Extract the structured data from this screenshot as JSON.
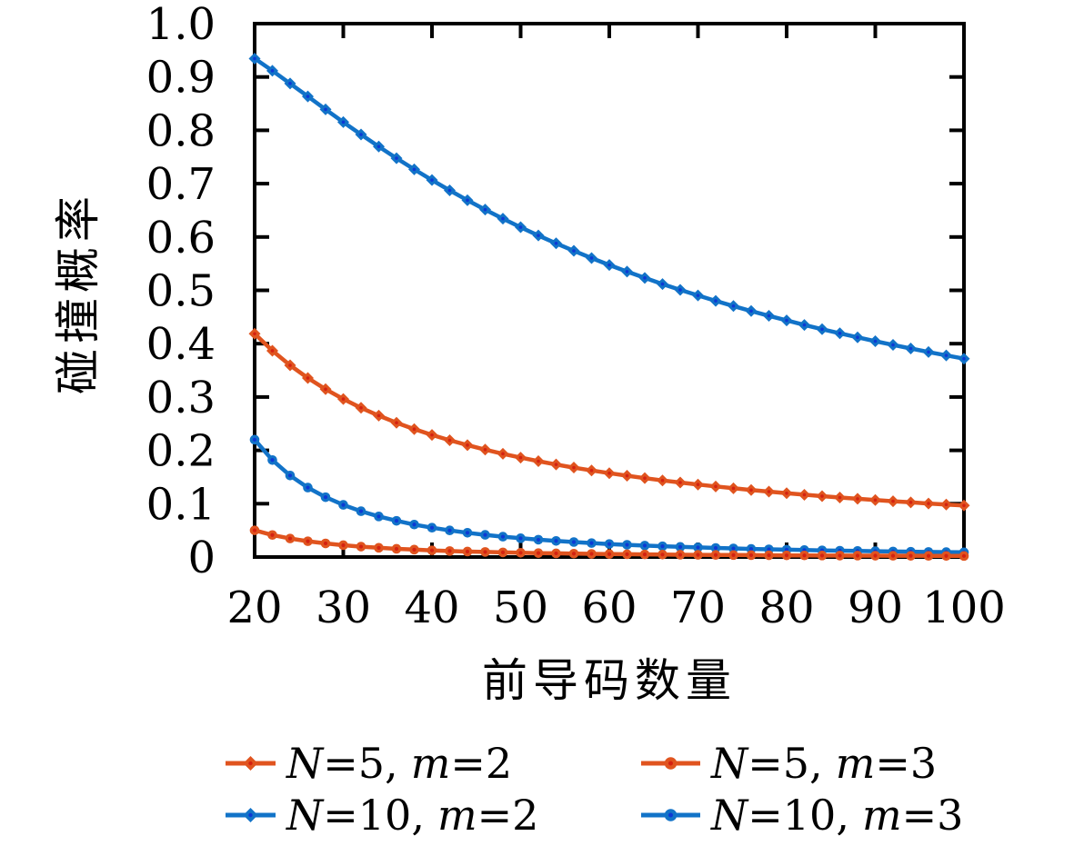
{
  "chart_data": {
    "type": "line",
    "title": "",
    "xlabel": "前导码数量",
    "ylabel": "碰撞概率",
    "xlim": [
      20,
      100
    ],
    "ylim": [
      0,
      1.0
    ],
    "grid": false,
    "legend_position": "below, 2 columns",
    "background": "#ffffff",
    "axis_color": "#000000",
    "x_ticks": [
      20,
      30,
      40,
      50,
      60,
      70,
      80,
      90,
      100
    ],
    "y_ticks": [
      {
        "value": 0.0,
        "label": "0"
      },
      {
        "value": 0.1,
        "label": "0.1"
      },
      {
        "value": 0.2,
        "label": "0.2"
      },
      {
        "value": 0.3,
        "label": "0.3"
      },
      {
        "value": 0.4,
        "label": "0.4"
      },
      {
        "value": 0.5,
        "label": "0.5"
      },
      {
        "value": 0.6,
        "label": "0.6"
      },
      {
        "value": 0.7,
        "label": "0.7"
      },
      {
        "value": 0.8,
        "label": "0.8"
      },
      {
        "value": 0.9,
        "label": "0.9"
      },
      {
        "value": 1.0,
        "label": "1.0"
      }
    ],
    "x": [
      20,
      22,
      24,
      26,
      28,
      30,
      32,
      34,
      36,
      38,
      40,
      42,
      44,
      46,
      48,
      50,
      52,
      54,
      56,
      58,
      60,
      62,
      64,
      66,
      68,
      70,
      72,
      74,
      76,
      78,
      80,
      82,
      84,
      86,
      88,
      90,
      92,
      94,
      96,
      98,
      100
    ],
    "series": [
      {
        "id": "N5-m2",
        "name": "N=5, m=2",
        "N": "5",
        "m": "2",
        "color": "#e0541f",
        "marker": "diamond",
        "marker_core_color": "#d42111",
        "values": [
          0.4186,
          0.3868,
          0.3594,
          0.3356,
          0.3147,
          0.2963,
          0.2798,
          0.2651,
          0.2518,
          0.2398,
          0.2289,
          0.2189,
          0.2098,
          0.2014,
          0.1936,
          0.1864,
          0.1797,
          0.1735,
          0.1677,
          0.1623,
          0.1572,
          0.1524,
          0.1479,
          0.1436,
          0.1397,
          0.1359,
          0.1323,
          0.1289,
          0.1256,
          0.1226,
          0.1196,
          0.1168,
          0.1142,
          0.1116,
          0.1092,
          0.1069,
          0.1046,
          0.1025,
          0.1004,
          0.0984,
          0.0966
        ]
      },
      {
        "id": "N5-m3",
        "name": "N=5, m=3",
        "N": "5",
        "m": "3",
        "color": "#e0541f",
        "marker": "circle",
        "marker_core_color": "#d42111",
        "values": [
          0.05,
          0.0413,
          0.0347,
          0.0296,
          0.0255,
          0.0222,
          0.0195,
          0.0173,
          0.0154,
          0.0139,
          0.0125,
          0.0113,
          0.0103,
          0.0095,
          0.0087,
          0.008,
          0.0074,
          0.0069,
          0.0064,
          0.0059,
          0.0056,
          0.0052,
          0.0049,
          0.0046,
          0.0043,
          0.0041,
          0.0039,
          0.0037,
          0.0035,
          0.0033,
          0.0031,
          0.003,
          0.0028,
          0.0027,
          0.0026,
          0.0025,
          0.0024,
          0.0023,
          0.0022,
          0.0021,
          0.002
        ]
      },
      {
        "id": "N10-m2",
        "name": "N=10, m=2",
        "N": "10",
        "m": "2",
        "color": "#1273c8",
        "marker": "diamond",
        "marker_core_color": "#0d38d4",
        "values": [
          0.9345,
          0.9117,
          0.8878,
          0.8635,
          0.8392,
          0.8154,
          0.7921,
          0.7695,
          0.7477,
          0.7268,
          0.7067,
          0.6874,
          0.6689,
          0.6513,
          0.6344,
          0.6183,
          0.6028,
          0.5881,
          0.574,
          0.5605,
          0.5475,
          0.5351,
          0.5233,
          0.5118,
          0.5009,
          0.4904,
          0.4803,
          0.4706,
          0.4612,
          0.4522,
          0.4436,
          0.4351,
          0.4271,
          0.4194,
          0.4119,
          0.4046,
          0.3977,
          0.3909,
          0.3843,
          0.378,
          0.3719
        ]
      },
      {
        "id": "N10-m3",
        "name": "N=10, m=3",
        "N": "10",
        "m": "3",
        "color": "#1273c8",
        "marker": "circle",
        "marker_core_color": "#0d38d4",
        "values": [
          0.22,
          0.1818,
          0.1528,
          0.1302,
          0.1122,
          0.0978,
          0.0859,
          0.0761,
          0.0679,
          0.0609,
          0.055,
          0.0499,
          0.0455,
          0.0416,
          0.0382,
          0.0352,
          0.0325,
          0.0302,
          0.0281,
          0.0262,
          0.0244,
          0.0229,
          0.0215,
          0.0202,
          0.019,
          0.018,
          0.017,
          0.0161,
          0.0152,
          0.0145,
          0.0138,
          0.0131,
          0.0125,
          0.0119,
          0.0114,
          0.0109,
          0.0104,
          0.01,
          0.0095,
          0.0092,
          0.0088
        ]
      }
    ]
  }
}
